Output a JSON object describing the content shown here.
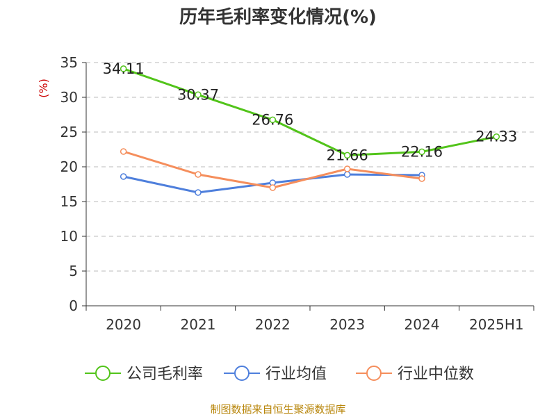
{
  "page": {
    "source_note": "制图数据来自恒生聚源数据库"
  },
  "chart_data": {
    "type": "line",
    "title": "历年毛利率变化情况(%)",
    "ylabel": "(%)",
    "xlabel": "",
    "categories": [
      "2020",
      "2021",
      "2022",
      "2023",
      "2024",
      "2025H1"
    ],
    "ylim": [
      0,
      35
    ],
    "yticks": [
      0,
      5,
      10,
      15,
      20,
      25,
      30,
      35
    ],
    "grid": true,
    "legend_position": "bottom",
    "series": [
      {
        "name": "公司毛利率",
        "color": "#52c41a",
        "show_labels": true,
        "values": [
          34.11,
          30.37,
          26.76,
          21.66,
          22.16,
          24.33
        ]
      },
      {
        "name": "行业均值",
        "color": "#4e7fdc",
        "show_labels": false,
        "values": [
          18.6,
          16.3,
          17.7,
          18.9,
          18.8,
          null
        ]
      },
      {
        "name": "行业中位数",
        "color": "#f58e5c",
        "show_labels": false,
        "values": [
          22.2,
          18.9,
          17.0,
          19.7,
          18.3,
          null
        ]
      }
    ]
  }
}
